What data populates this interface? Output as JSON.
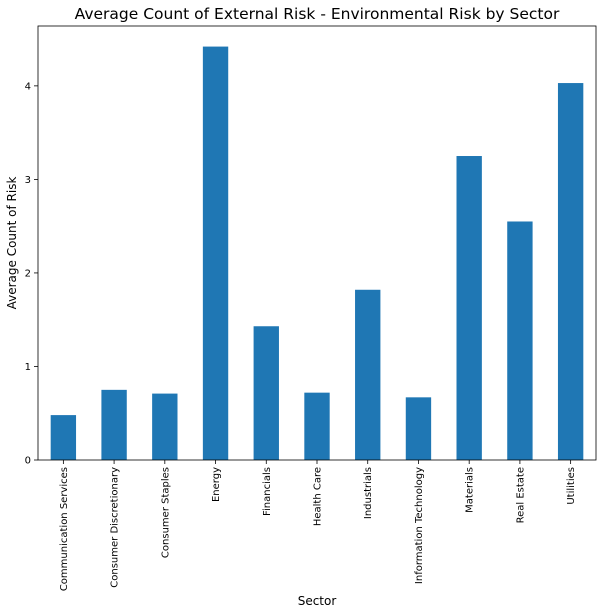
{
  "chart_data": {
    "type": "bar",
    "title": "Average Count of External Risk - Environmental Risk by Sector",
    "xlabel": "Sector",
    "ylabel": "Average Count of Risk",
    "categories": [
      "Communication Services",
      "Consumer Discretionary",
      "Consumer Staples",
      "Energy",
      "Financials",
      "Health Care",
      "Industrials",
      "Information Technology",
      "Materials",
      "Real Estate",
      "Utilities"
    ],
    "values": [
      0.48,
      0.75,
      0.71,
      4.42,
      1.43,
      0.72,
      1.82,
      0.67,
      3.25,
      2.55,
      4.03
    ],
    "yticks": [
      0,
      1,
      2,
      3,
      4
    ],
    "ylim": [
      0,
      4.64
    ],
    "grid": false,
    "legend": "none",
    "bar_color": "#1f77b4"
  }
}
